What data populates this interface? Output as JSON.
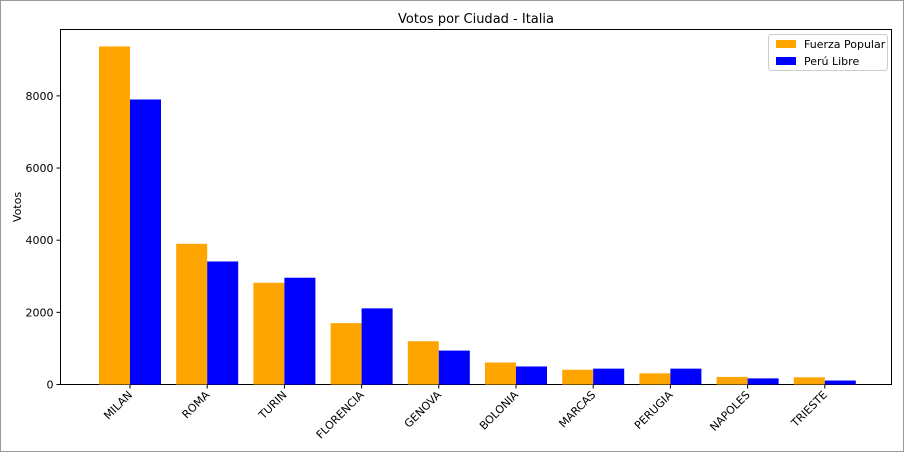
{
  "chart_data": {
    "type": "bar",
    "title": "Votos por Ciudad - Italia",
    "xlabel": "",
    "ylabel": "Votos",
    "categories": [
      "MILAN",
      "ROMA",
      "TURIN",
      "FLORENCIA",
      "GENOVA",
      "BOLONIA",
      "MARCAS",
      "PERUGIA",
      "NAPOLES",
      "TRIESTE"
    ],
    "series": [
      {
        "name": "Fuerza Popular",
        "color": "#ffa500",
        "values": [
          9370,
          3900,
          2820,
          1700,
          1200,
          610,
          410,
          310,
          210,
          200
        ]
      },
      {
        "name": "Perú Libre",
        "color": "#0000ff",
        "values": [
          7900,
          3410,
          2960,
          2110,
          940,
          500,
          440,
          440,
          170,
          110
        ]
      }
    ],
    "ylim": [
      0,
      9840
    ],
    "yticks": [
      0,
      2000,
      4000,
      6000,
      8000
    ],
    "legend_position": "top-right",
    "grid": false
  }
}
